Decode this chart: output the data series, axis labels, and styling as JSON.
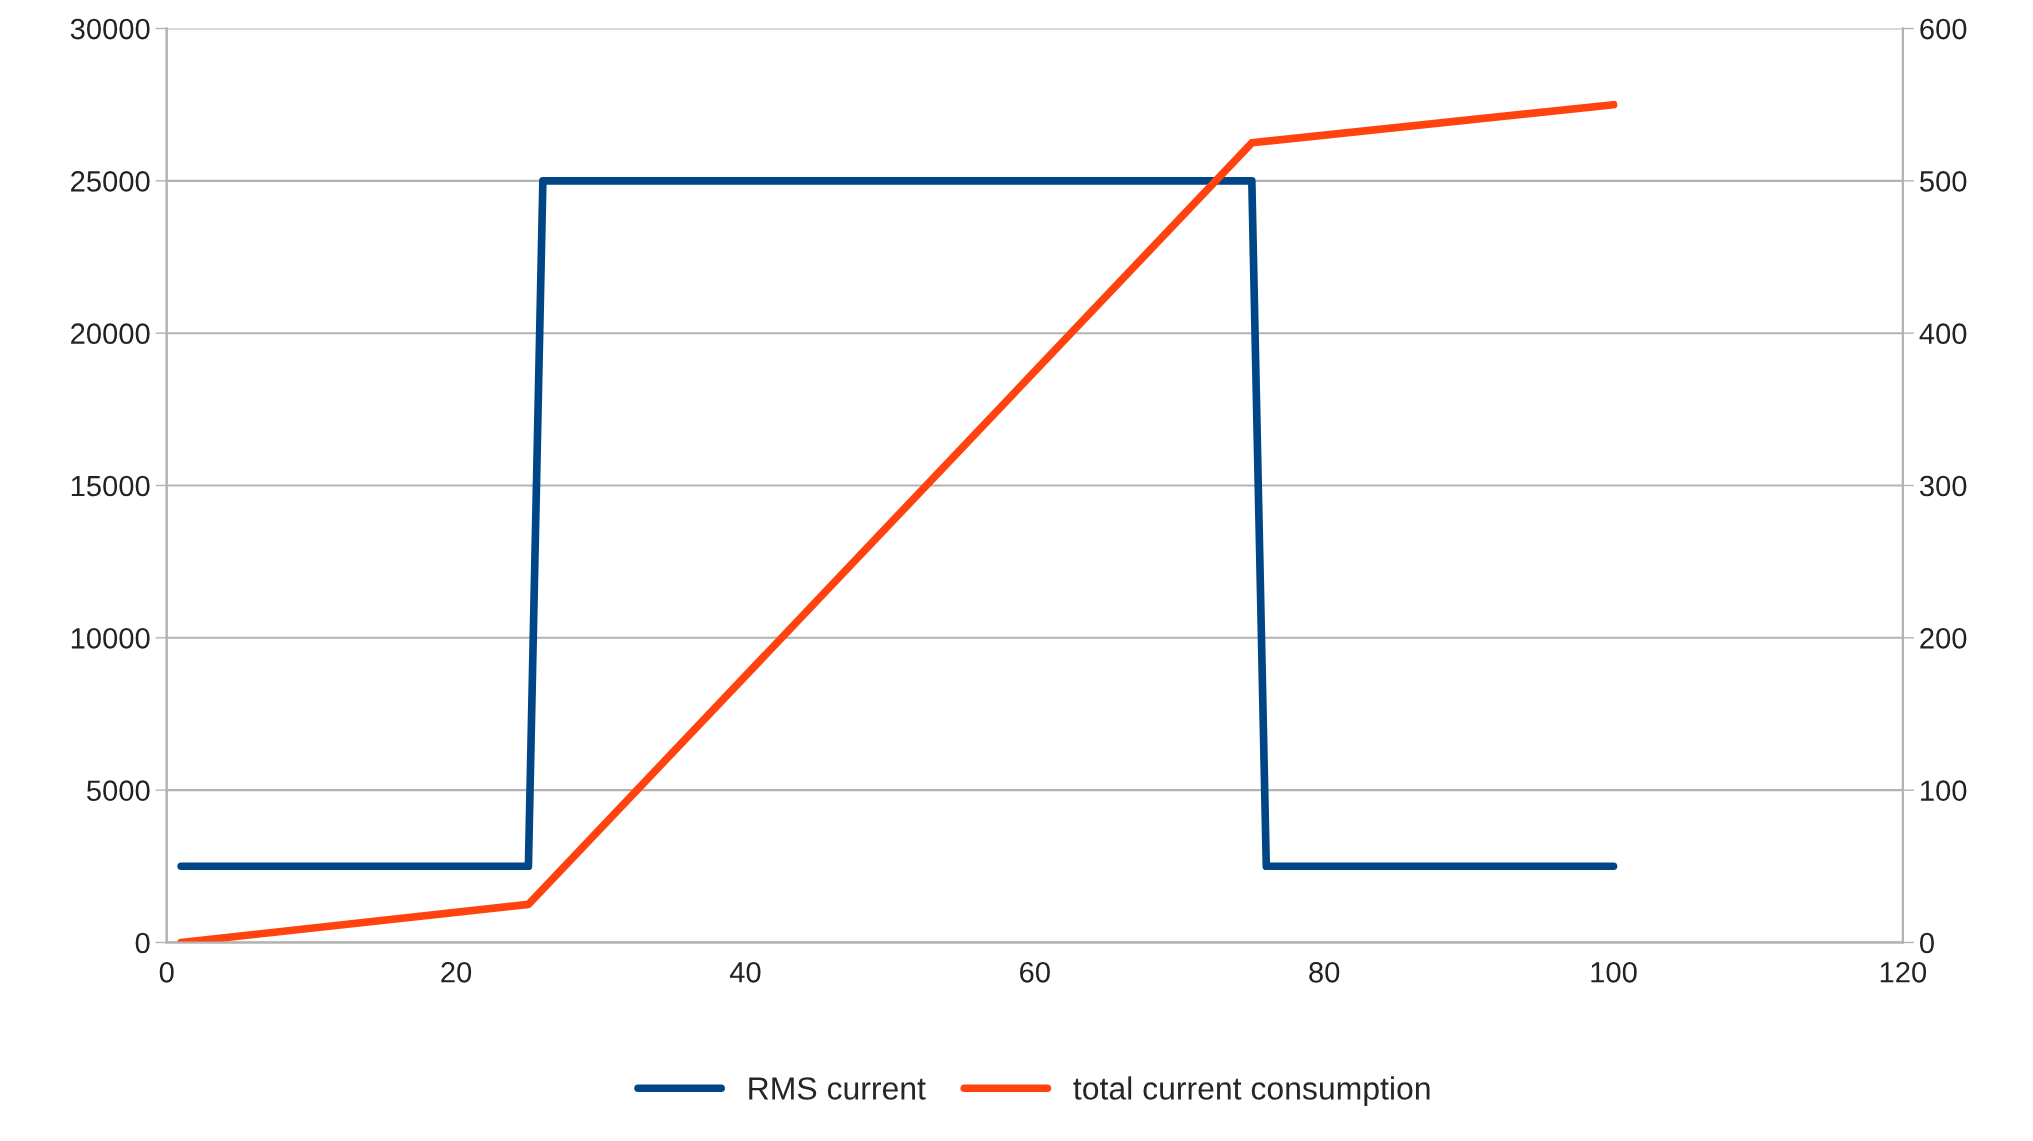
{
  "chart_data": {
    "type": "line",
    "xlim": [
      0,
      120
    ],
    "xticks": [
      0,
      20,
      40,
      60,
      80,
      100,
      120
    ],
    "ylim": [
      0,
      30000
    ],
    "yticks": [
      0,
      5000,
      10000,
      15000,
      20000,
      25000,
      30000
    ],
    "y2lim": [
      0,
      600
    ],
    "y2ticks": [
      0,
      100,
      200,
      300,
      400,
      500,
      600
    ],
    "grid": "y",
    "legend": "bottom",
    "marker": "none",
    "line_style": "solid",
    "series": [
      {
        "name": "RMS current",
        "color": "#004586",
        "x": [
          1,
          25,
          26,
          75,
          76,
          100
        ],
        "values": [
          2500,
          2500,
          25000,
          25000,
          2500,
          2500
        ]
      },
      {
        "name": "total current consumption",
        "color": "#ff420e",
        "axis": "y2",
        "x": [
          1,
          25,
          75,
          100
        ],
        "values": [
          0,
          25,
          525,
          550
        ]
      }
    ]
  }
}
